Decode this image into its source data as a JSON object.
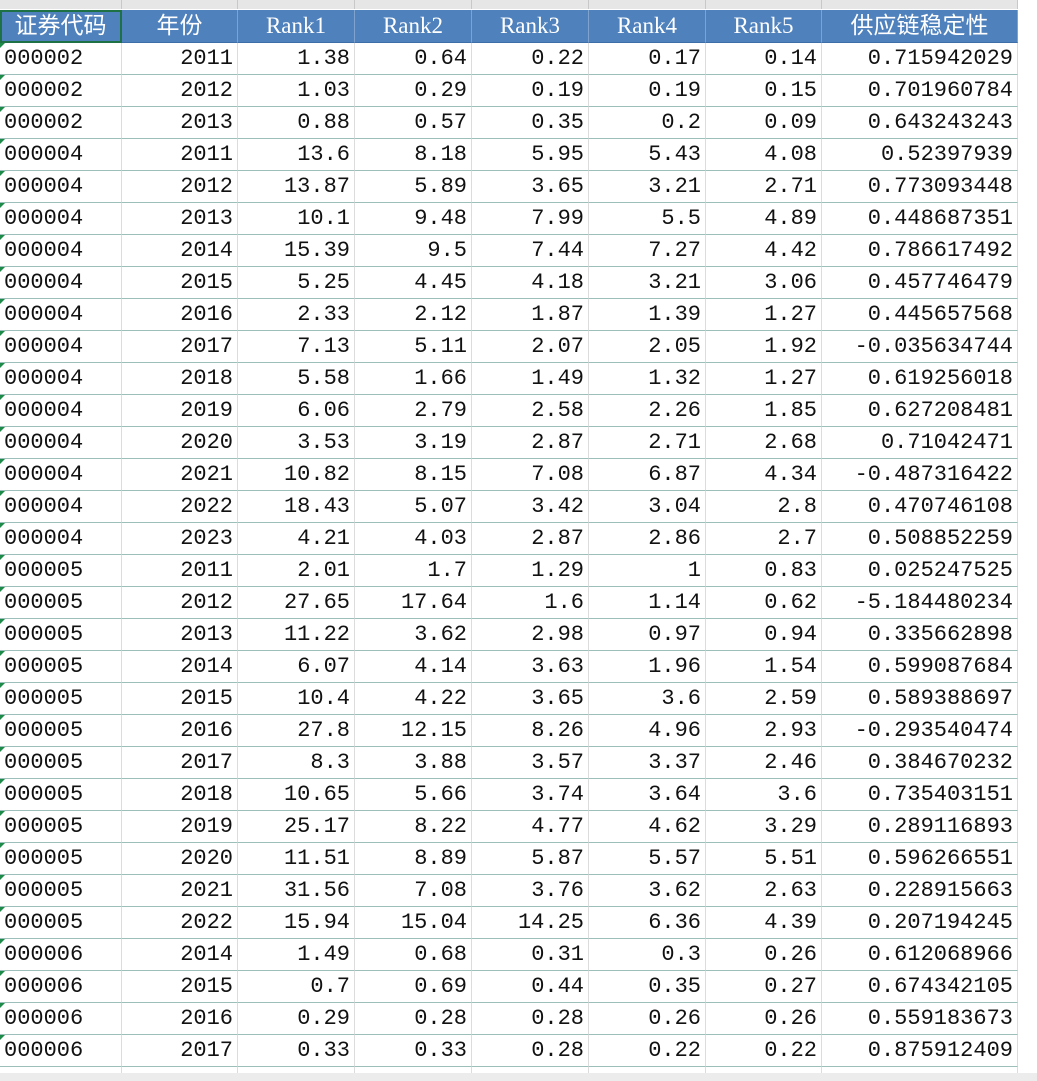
{
  "table": {
    "header": [
      "证券代码",
      "年份",
      "Rank1",
      "Rank2",
      "Rank3",
      "Rank4",
      "Rank5",
      "供应链稳定性"
    ],
    "rows": [
      [
        "000002",
        "2011",
        "1.38",
        "0.64",
        "0.22",
        "0.17",
        "0.14",
        "0.715942029"
      ],
      [
        "000002",
        "2012",
        "1.03",
        "0.29",
        "0.19",
        "0.19",
        "0.15",
        "0.701960784"
      ],
      [
        "000002",
        "2013",
        "0.88",
        "0.57",
        "0.35",
        "0.2",
        "0.09",
        "0.643243243"
      ],
      [
        "000004",
        "2011",
        "13.6",
        "8.18",
        "5.95",
        "5.43",
        "4.08",
        "0.52397939"
      ],
      [
        "000004",
        "2012",
        "13.87",
        "5.89",
        "3.65",
        "3.21",
        "2.71",
        "0.773093448"
      ],
      [
        "000004",
        "2013",
        "10.1",
        "9.48",
        "7.99",
        "5.5",
        "4.89",
        "0.448687351"
      ],
      [
        "000004",
        "2014",
        "15.39",
        "9.5",
        "7.44",
        "7.27",
        "4.42",
        "0.786617492"
      ],
      [
        "000004",
        "2015",
        "5.25",
        "4.45",
        "4.18",
        "3.21",
        "3.06",
        "0.457746479"
      ],
      [
        "000004",
        "2016",
        "2.33",
        "2.12",
        "1.87",
        "1.39",
        "1.27",
        "0.445657568"
      ],
      [
        "000004",
        "2017",
        "7.13",
        "5.11",
        "2.07",
        "2.05",
        "1.92",
        "-0.035634744"
      ],
      [
        "000004",
        "2018",
        "5.58",
        "1.66",
        "1.49",
        "1.32",
        "1.27",
        "0.619256018"
      ],
      [
        "000004",
        "2019",
        "6.06",
        "2.79",
        "2.58",
        "2.26",
        "1.85",
        "0.627208481"
      ],
      [
        "000004",
        "2020",
        "3.53",
        "3.19",
        "2.87",
        "2.71",
        "2.68",
        "0.71042471"
      ],
      [
        "000004",
        "2021",
        "10.82",
        "8.15",
        "7.08",
        "6.87",
        "4.34",
        "-0.487316422"
      ],
      [
        "000004",
        "2022",
        "18.43",
        "5.07",
        "3.42",
        "3.04",
        "2.8",
        "0.470746108"
      ],
      [
        "000004",
        "2023",
        "4.21",
        "4.03",
        "2.87",
        "2.86",
        "2.7",
        "0.508852259"
      ],
      [
        "000005",
        "2011",
        "2.01",
        "1.7",
        "1.29",
        "1",
        "0.83",
        "0.025247525"
      ],
      [
        "000005",
        "2012",
        "27.65",
        "17.64",
        "1.6",
        "1.14",
        "0.62",
        "-5.184480234"
      ],
      [
        "000005",
        "2013",
        "11.22",
        "3.62",
        "2.98",
        "0.97",
        "0.94",
        "0.335662898"
      ],
      [
        "000005",
        "2014",
        "6.07",
        "4.14",
        "3.63",
        "1.96",
        "1.54",
        "0.599087684"
      ],
      [
        "000005",
        "2015",
        "10.4",
        "4.22",
        "3.65",
        "3.6",
        "2.59",
        "0.589388697"
      ],
      [
        "000005",
        "2016",
        "27.8",
        "12.15",
        "8.26",
        "4.96",
        "2.93",
        "-0.293540474"
      ],
      [
        "000005",
        "2017",
        "8.3",
        "3.88",
        "3.57",
        "3.37",
        "2.46",
        "0.384670232"
      ],
      [
        "000005",
        "2018",
        "10.65",
        "5.66",
        "3.74",
        "3.64",
        "3.6",
        "0.735403151"
      ],
      [
        "000005",
        "2019",
        "25.17",
        "8.22",
        "4.77",
        "4.62",
        "3.29",
        "0.289116893"
      ],
      [
        "000005",
        "2020",
        "11.51",
        "8.89",
        "5.87",
        "5.57",
        "5.51",
        "0.596266551"
      ],
      [
        "000005",
        "2021",
        "31.56",
        "7.08",
        "3.76",
        "3.62",
        "2.63",
        "0.228915663"
      ],
      [
        "000005",
        "2022",
        "15.94",
        "15.04",
        "14.25",
        "6.36",
        "4.39",
        "0.207194245"
      ],
      [
        "000006",
        "2014",
        "1.49",
        "0.68",
        "0.31",
        "0.3",
        "0.26",
        "0.612068966"
      ],
      [
        "000006",
        "2015",
        "0.7",
        "0.69",
        "0.44",
        "0.35",
        "0.27",
        "0.674342105"
      ],
      [
        "000006",
        "2016",
        "0.29",
        "0.28",
        "0.28",
        "0.26",
        "0.26",
        "0.559183673"
      ],
      [
        "000006",
        "2017",
        "0.33",
        "0.33",
        "0.28",
        "0.22",
        "0.22",
        "0.875912409"
      ]
    ]
  }
}
